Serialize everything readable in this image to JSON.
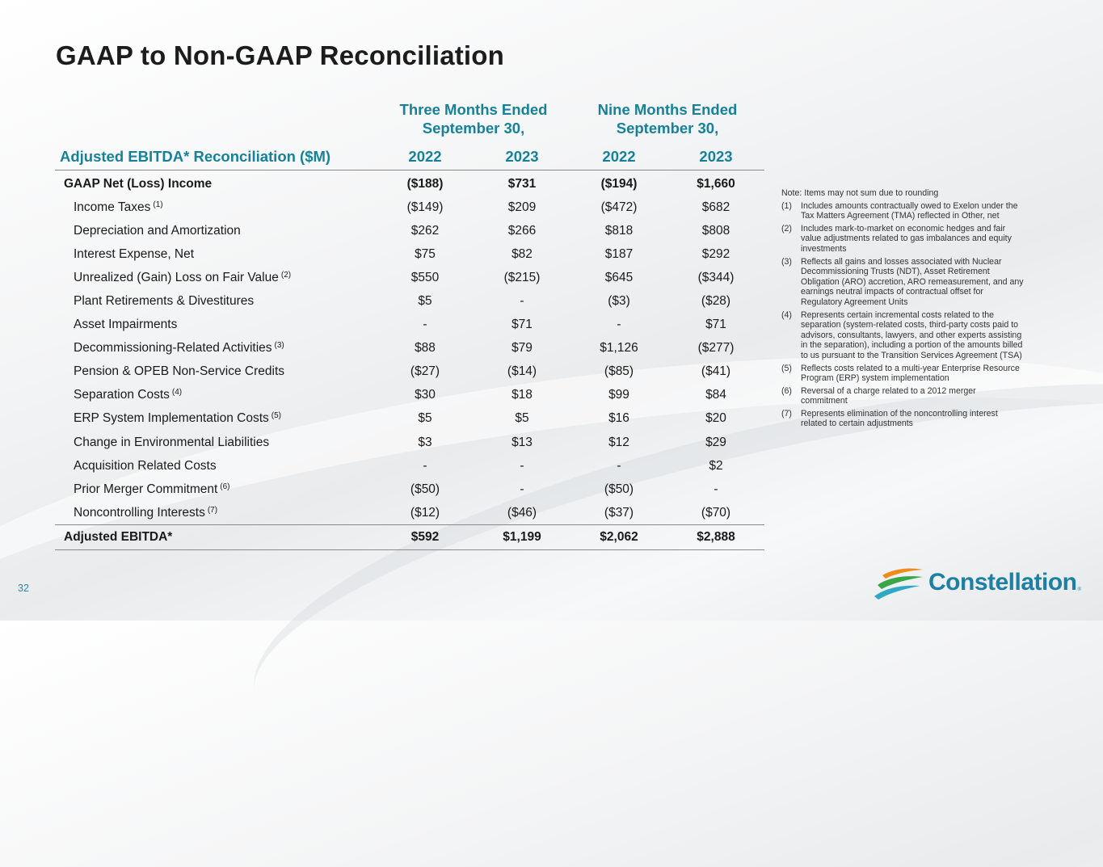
{
  "slide": {
    "title": "GAAP to Non-GAAP Reconciliation",
    "page_number": "32"
  },
  "table": {
    "group_headers": [
      "Three Months Ended\nSeptember 30,",
      "Nine Months Ended\nSeptember 30,"
    ],
    "label_header": "Adjusted EBITDA* Reconciliation ($M)",
    "year_headers": [
      "2022",
      "2023",
      "2022",
      "2023"
    ],
    "rows": [
      {
        "label": "GAAP Net (Loss) Income",
        "sup": "",
        "values": [
          "($188)",
          "$731",
          "($194)",
          "$1,660"
        ]
      },
      {
        "label": "Income Taxes",
        "sup": "(1)",
        "values": [
          "($149)",
          "$209",
          "($472)",
          "$682"
        ]
      },
      {
        "label": "Depreciation and Amortization",
        "sup": "",
        "values": [
          "$262",
          "$266",
          "$818",
          "$808"
        ]
      },
      {
        "label": "Interest Expense, Net",
        "sup": "",
        "values": [
          "$75",
          "$82",
          "$187",
          "$292"
        ]
      },
      {
        "label": "Unrealized (Gain) Loss on Fair Value",
        "sup": "(2)",
        "values": [
          "$550",
          "($215)",
          "$645",
          "($344)"
        ]
      },
      {
        "label": "Plant Retirements & Divestitures",
        "sup": "",
        "values": [
          "$5",
          "-",
          "($3)",
          "($28)"
        ]
      },
      {
        "label": "Asset Impairments",
        "sup": "",
        "values": [
          "-",
          "$71",
          "-",
          "$71"
        ]
      },
      {
        "label": "Decommissioning-Related Activities",
        "sup": "(3)",
        "values": [
          "$88",
          "$79",
          "$1,126",
          "($277)"
        ]
      },
      {
        "label": "Pension & OPEB Non-Service Credits",
        "sup": "",
        "values": [
          "($27)",
          "($14)",
          "($85)",
          "($41)"
        ]
      },
      {
        "label": "Separation Costs",
        "sup": "(4)",
        "values": [
          "$30",
          "$18",
          "$99",
          "$84"
        ]
      },
      {
        "label": "ERP System Implementation Costs",
        "sup": "(5)",
        "values": [
          "$5",
          "$5",
          "$16",
          "$20"
        ]
      },
      {
        "label": "Change in Environmental Liabilities",
        "sup": "",
        "values": [
          "$3",
          "$13",
          "$12",
          "$29"
        ]
      },
      {
        "label": "Acquisition Related Costs",
        "sup": "",
        "values": [
          "-",
          "-",
          "-",
          "$2"
        ]
      },
      {
        "label": "Prior Merger Commitment",
        "sup": "(6)",
        "values": [
          "($50)",
          "-",
          "($50)",
          "-"
        ]
      },
      {
        "label": "Noncontrolling Interests",
        "sup": "(7)",
        "values": [
          "($12)",
          "($46)",
          "($37)",
          "($70)"
        ]
      },
      {
        "label": "Adjusted EBITDA*",
        "sup": "",
        "values": [
          "$592",
          "$1,199",
          "$2,062",
          "$2,888"
        ]
      }
    ]
  },
  "notes": {
    "heading": "Note: Items may not sum due to rounding",
    "footnotes": [
      {
        "num": "(1)",
        "text": "Includes amounts contractually owed to Exelon under the Tax Matters Agreement (TMA) reflected in Other, net"
      },
      {
        "num": "(2)",
        "text": "Includes mark-to-market on economic hedges and fair value adjustments related to gas imbalances and equity investments"
      },
      {
        "num": "(3)",
        "text": "Reflects all gains and losses associated with Nuclear Decommissioning Trusts (NDT), Asset Retirement Obligation (ARO) accretion, ARO remeasurement, and any earnings neutral impacts of contractual offset for Regulatory Agreement Units"
      },
      {
        "num": "(4)",
        "text": "Represents certain incremental costs related to the separation (system-related costs, third-party costs paid to advisors, consultants, lawyers, and other experts assisting in the separation), including a portion of the amounts billed to us pursuant to the Transition Services Agreement (TSA)"
      },
      {
        "num": "(5)",
        "text": "Reflects costs related to a multi-year Enterprise Resource Program (ERP) system implementation"
      },
      {
        "num": "(6)",
        "text": "Reversal of a charge related to a 2012 merger commitment"
      },
      {
        "num": "(7)",
        "text": "Represents elimination of the noncontrolling interest related to certain adjustments"
      }
    ]
  },
  "logo": {
    "wordmark": "Constellation",
    "registered": "®",
    "icon": "constellation-swoosh-logo-icon",
    "colors": {
      "primary": "#1e7fa4",
      "orange": "#f08a1c",
      "green": "#3aa64a",
      "teal": "#2fa9c3"
    }
  },
  "colors": {
    "accent": "#17819a",
    "title": "#1c1c1c",
    "rule": "#8a8a8a"
  }
}
